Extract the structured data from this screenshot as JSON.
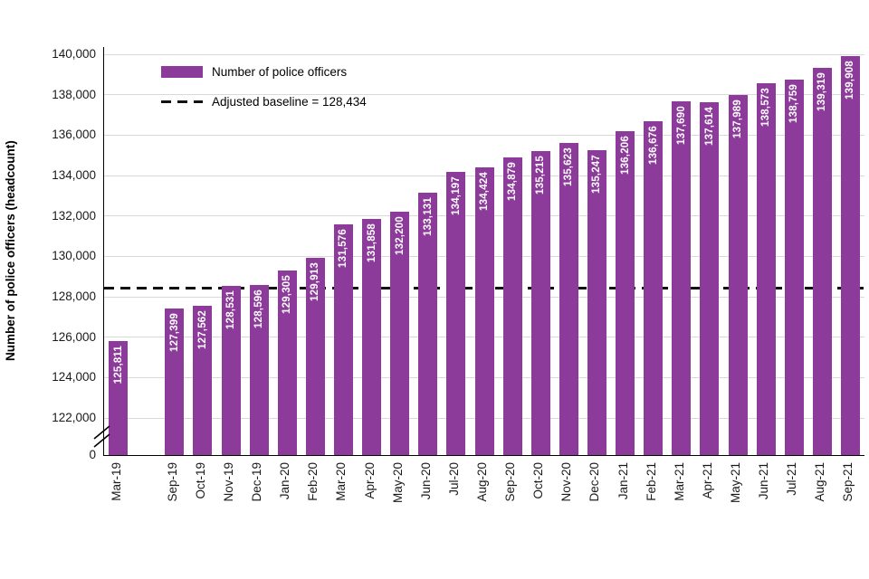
{
  "chart_data": {
    "type": "bar",
    "title": "",
    "ylabel": "Number of police officers (headcount)",
    "xlabel": "",
    "categories": [
      "Mar-19",
      "Sep-19",
      "Oct-19",
      "Nov-19",
      "Dec-19",
      "Jan-20",
      "Feb-20",
      "Mar-20",
      "Apr-20",
      "May-20",
      "Jun-20",
      "Jul-20",
      "Aug-20",
      "Sep-20",
      "Oct-20",
      "Nov-20",
      "Dec-20",
      "Jan-21",
      "Feb-21",
      "Mar-21",
      "Apr-21",
      "May-21",
      "Jun-21",
      "Jul-21",
      "Aug-21",
      "Sep-21"
    ],
    "values": [
      125811,
      127399,
      127562,
      128531,
      128596,
      129305,
      129913,
      131576,
      131858,
      132200,
      133131,
      134197,
      134424,
      134879,
      135215,
      135623,
      135247,
      136206,
      136676,
      137690,
      137614,
      137989,
      138573,
      138759,
      139319,
      139908
    ],
    "baseline": {
      "value": 128434,
      "label": "Adjusted baseline = 128,434"
    },
    "legend": {
      "bars": "Number of police officers",
      "baseline": "Adjusted baseline = 128,434"
    },
    "y_axis": {
      "has_break": true,
      "ticks": [
        {
          "value": 140000,
          "label": "140,000"
        },
        {
          "value": 138000,
          "label": "138,000"
        },
        {
          "value": 136000,
          "label": "136,000"
        },
        {
          "value": 134000,
          "label": "134,000"
        },
        {
          "value": 132000,
          "label": "132,000"
        },
        {
          "value": 130000,
          "label": "130,000"
        },
        {
          "value": 128000,
          "label": "128,000"
        },
        {
          "value": 126000,
          "label": "126,000"
        },
        {
          "value": 124000,
          "label": "124,000"
        },
        {
          "value": 122000,
          "label": "122,000"
        },
        {
          "value": 0,
          "label": "0"
        }
      ]
    },
    "colors": {
      "bar": "#8d3b9b",
      "grid": "#d9d9d9",
      "baseline": "#111111",
      "value_label": "#ffffff"
    }
  }
}
